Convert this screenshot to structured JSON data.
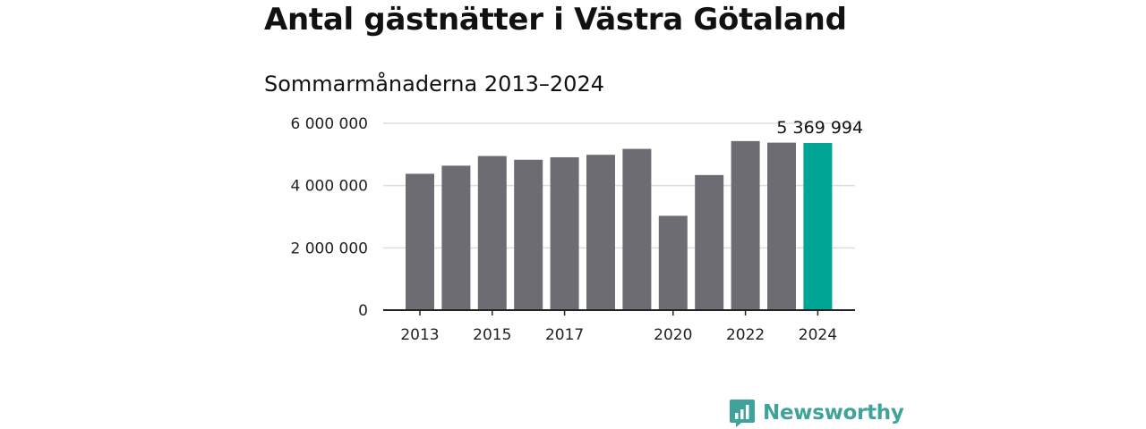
{
  "colors": {
    "bar": "#6d6c72",
    "highlight": "#00a595",
    "grid": "#dddddd",
    "axis": "#222222",
    "brand": "#3fa39b"
  },
  "brand": {
    "name": "Newsworthy",
    "icon": "bar-chart-speech-bubble-icon"
  },
  "chart_data": {
    "type": "bar",
    "title": "Antal gästnätter i Västra Götaland",
    "subtitle": "Sommarmånaderna 2013–2024",
    "categories": [
      "2013",
      "2014",
      "2015",
      "2016",
      "2017",
      "2018",
      "2019",
      "2020",
      "2021",
      "2022",
      "2023",
      "2024"
    ],
    "values": [
      4380000,
      4640000,
      4950000,
      4830000,
      4910000,
      4990000,
      5180000,
      3030000,
      4340000,
      5430000,
      5380000,
      5369994
    ],
    "x_tick_labels": [
      "2013",
      "2015",
      "2017",
      "2020",
      "2022",
      "2024"
    ],
    "y_ticks": [
      0,
      2000000,
      4000000,
      6000000
    ],
    "y_tick_labels": [
      "0",
      "2 000 000",
      "4 000 000",
      "6 000 000"
    ],
    "ylim": [
      0,
      6000000
    ],
    "highlight_category": "2024",
    "value_label": "5 369 994",
    "grid": true
  }
}
